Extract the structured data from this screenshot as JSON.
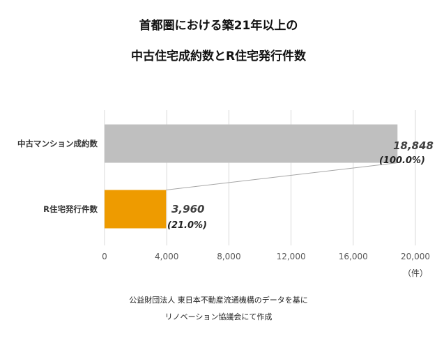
{
  "chart_data": {
    "type": "bar",
    "orientation": "horizontal",
    "title_lines": [
      "首都圏における築21年以上の",
      "中古住宅成約数とR住宅発行件数"
    ],
    "categories": [
      "中古マンション成約数",
      "R住宅発行件数"
    ],
    "values": [
      18848,
      3960
    ],
    "value_labels": [
      "18,848",
      "3,960"
    ],
    "percent_labels": [
      "(100.0%)",
      "(21.0%)"
    ],
    "bar_colors": [
      "#bfbfbf",
      "#ee9b00"
    ],
    "xlim": [
      0,
      20000
    ],
    "x_ticks": [
      0,
      4000,
      8000,
      12000,
      16000,
      20000
    ],
    "x_tick_labels": [
      "0",
      "4,000",
      "8,000",
      "12,000",
      "16,000",
      "20,000"
    ],
    "x_unit": "（件）",
    "grid": true,
    "source_lines": [
      "公益財団法人 東日本不動産流通機構のデータを基に",
      "リノベーション協議会にて作成"
    ]
  }
}
